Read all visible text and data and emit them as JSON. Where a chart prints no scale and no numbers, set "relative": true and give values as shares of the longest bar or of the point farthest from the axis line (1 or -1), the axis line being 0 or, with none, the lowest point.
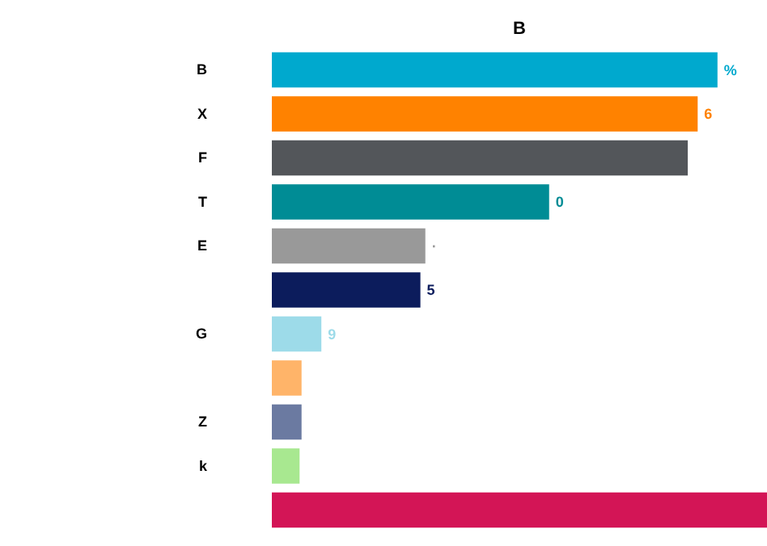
{
  "chart_data": {
    "type": "bar",
    "orientation": "horizontal",
    "relative": true,
    "title": "B",
    "categories": [
      "B",
      "X",
      "F",
      "T",
      "E",
      null,
      "G",
      null,
      "Z",
      "k",
      null
    ],
    "values": [
      0.9,
      0.86,
      0.84,
      0.56,
      0.31,
      0.3,
      0.1,
      0.06,
      0.06,
      0.056,
      1
    ],
    "colors": [
      "#00a9ce",
      "#ff8200",
      "#53565a",
      "#008c95",
      "#999999",
      "#0c1c5c",
      "#9ddbe9",
      "#ffb469",
      "#6b7aa1",
      "#a8e890",
      "#d31556"
    ],
    "annotations": [
      {
        "text": "%",
        "x": 0.9,
        "y": "B"
      },
      {
        "text": "6",
        "x": 0.86,
        "y": "X"
      },
      {
        "text": "0",
        "x": 0.56,
        "y": "T"
      },
      {
        "text": "·",
        "x": 0.31,
        "y": "E"
      },
      {
        "text": "5",
        "x": 0.3
      },
      {
        "text": "9",
        "x": 0.1,
        "y": "G"
      }
    ]
  }
}
